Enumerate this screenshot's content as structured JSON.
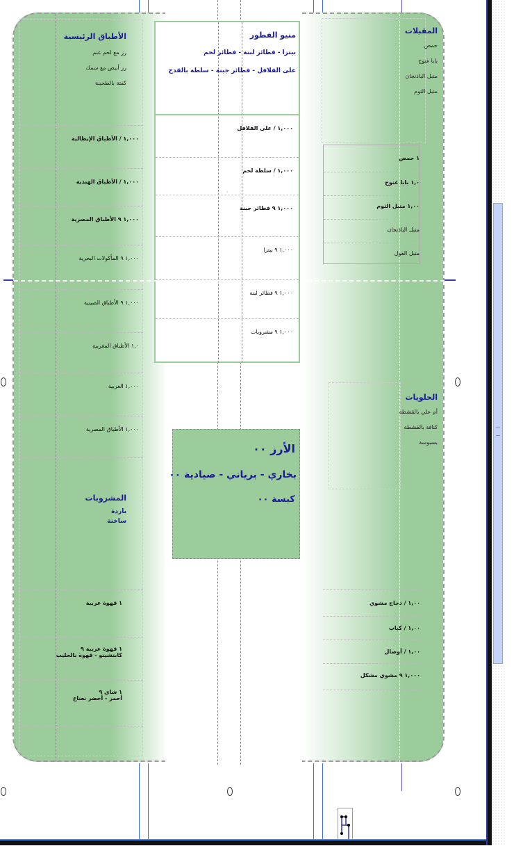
{
  "left_panel": {
    "title": "الأطباق الرئيسية",
    "lines": [
      "رز مع لحم غنم",
      "رز أبيض مع سمك",
      "كفتة بالطحينة"
    ],
    "items": [
      "١,٠٠٠ / الأطباق الإيطالية",
      "١,٠٠٠ / الأطباق الهندية",
      "١,٠٠٠ ٩ الأطباق المصرية",
      "١,٠٠٠ ٩ المأكولات البحرية",
      "١,٠٠٠ ٩ الأطباق الصينية",
      "١,٠ الأطباق المغربية",
      "١,٠٠٠ العربية",
      "١,٠٠٠ الأطباق المصرية"
    ],
    "drinks_title": "المشروبات",
    "drinks_lines": [
      "باردة",
      "ساخنة"
    ],
    "drinks_items": [
      {
        "a": "١ قهوة عربية",
        "b": ""
      },
      {
        "a": "١ قهوة عربية ٩",
        "b": "كابتشينو - قهوة بالحليب"
      },
      {
        "a": "١ شاي ٩",
        "b": "أحمر - أخضر نعناع"
      }
    ]
  },
  "middle_panel": {
    "title": "منيو الفطور",
    "lines": [
      "بيتزا - فطائر لبنة - فطائر لحم",
      "على الفلافل - فطائر جبنة - سلطة بالقدح"
    ],
    "items": [
      "١,٠٠٠ / على الفلافل",
      "١,٠٠٠ / سلطة لحم",
      "١,٠٠٠ ٩ فطائر جبنة",
      "١,٠٠٠ ٩ بيتزا",
      "١,٠٠٠ ٩ فطائر لبنة",
      "١,٠٠٠ ٩ مشروبات"
    ]
  },
  "center_box": {
    "lines": [
      "الأرز ٠٠",
      "بخاري - برياني - صيادية ٠٠",
      "كبسة ٠٠"
    ]
  },
  "right_panel": {
    "title": "المقبلات",
    "lines": [
      "حمص",
      "بابا غنوج",
      "متبل الباذنجان",
      "متبل الثوم"
    ],
    "items": [
      "١ حمص",
      "١,٠ بابا غنوج",
      "١,٠٠ متبل الثوم",
      "متبل الباذنجان",
      "متبل الفول"
    ],
    "sweets_title": "الحلويات",
    "sweets_lines": [
      "أم علي بالقشطة",
      "كنافة بالقشطة",
      "بسبوسة"
    ],
    "grill_items": [
      "١,٠٠ / دجاج مشوي",
      "١,٠٠ / كباب",
      "١,٠٠ / أوصال",
      "١,٠٠٠ ٩ مشوي مشكل"
    ]
  },
  "markers": [
    "0",
    "0",
    "0",
    "0",
    "0"
  ],
  "colors": {
    "panel_green": "#9ccc9c",
    "title_blue": "#1a1a9a",
    "guide_blue": "#3a6cf0"
  },
  "scrollbar": {
    "position_fraction": 0.3
  }
}
